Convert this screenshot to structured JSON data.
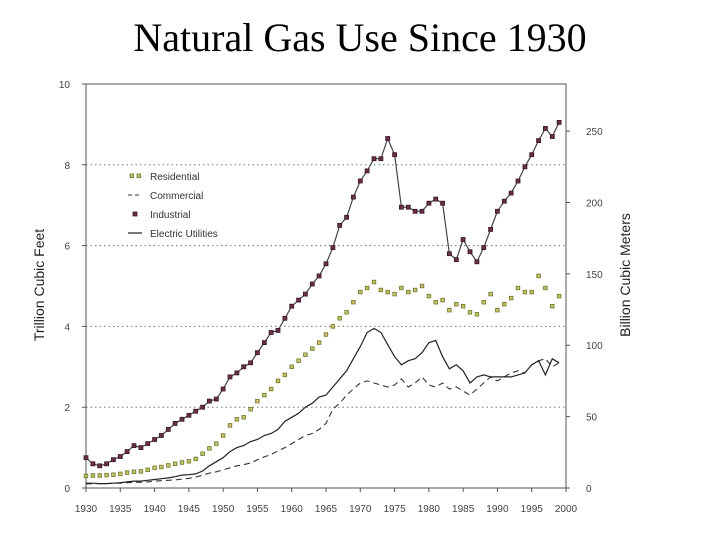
{
  "slide": {
    "title": "Natural Gas Use Since 1930"
  },
  "chart_data": {
    "type": "line",
    "title": "Natural Gas Use Since 1930",
    "xlabel": "",
    "ylabel": "Trillion Cubic Feet",
    "y2label": "Billion Cubic Meters",
    "xlim": [
      1930,
      2000
    ],
    "ylim": [
      0,
      10
    ],
    "y2lim": [
      0,
      283
    ],
    "x_ticks": [
      "1930",
      "1935",
      "1940",
      "1945",
      "1950",
      "1955",
      "1960",
      "1965",
      "1970",
      "1975",
      "1980",
      "1985",
      "1990",
      "1995",
      "2000"
    ],
    "y_ticks": [
      "0",
      "2",
      "4",
      "6",
      "8",
      "10"
    ],
    "y2_ticks": [
      "0",
      "50",
      "100",
      "150",
      "200",
      "250"
    ],
    "grid": "horizontal dotted at 2, 4, 6, 8",
    "legend_position": "top-left",
    "x": [
      1930,
      1931,
      1932,
      1933,
      1934,
      1935,
      1936,
      1937,
      1938,
      1939,
      1940,
      1941,
      1942,
      1943,
      1944,
      1945,
      1946,
      1947,
      1948,
      1949,
      1950,
      1951,
      1952,
      1953,
      1954,
      1955,
      1956,
      1957,
      1958,
      1959,
      1960,
      1961,
      1962,
      1963,
      1964,
      1965,
      1966,
      1967,
      1968,
      1969,
      1970,
      1971,
      1972,
      1973,
      1974,
      1975,
      1976,
      1977,
      1978,
      1979,
      1980,
      1981,
      1982,
      1983,
      1984,
      1985,
      1986,
      1987,
      1988,
      1989,
      1990,
      1991,
      1992,
      1993,
      1994,
      1995,
      1996,
      1997,
      1998,
      1999
    ],
    "series": [
      {
        "name": "Residential",
        "style": "dotted-squares",
        "color": "#6b7a2a",
        "values": [
          0.3,
          0.31,
          0.31,
          0.32,
          0.33,
          0.35,
          0.38,
          0.4,
          0.41,
          0.45,
          0.5,
          0.52,
          0.56,
          0.6,
          0.63,
          0.66,
          0.72,
          0.85,
          0.98,
          1.1,
          1.3,
          1.55,
          1.7,
          1.75,
          1.95,
          2.15,
          2.3,
          2.45,
          2.65,
          2.8,
          3.0,
          3.15,
          3.3,
          3.45,
          3.6,
          3.8,
          4.0,
          4.2,
          4.35,
          4.6,
          4.85,
          4.95,
          5.1,
          4.9,
          4.85,
          4.8,
          4.95,
          4.85,
          4.9,
          5.0,
          4.75,
          4.6,
          4.65,
          4.4,
          4.55,
          4.5,
          4.35,
          4.3,
          4.6,
          4.8,
          4.4,
          4.55,
          4.7,
          4.95,
          4.85,
          4.85,
          5.25,
          4.95,
          4.5,
          4.75
        ]
      },
      {
        "name": "Commercial",
        "style": "dashed",
        "color": "#333333",
        "values": [
          0.1,
          0.11,
          0.11,
          0.11,
          0.12,
          0.12,
          0.13,
          0.14,
          0.14,
          0.15,
          0.17,
          0.18,
          0.19,
          0.2,
          0.22,
          0.24,
          0.27,
          0.32,
          0.37,
          0.4,
          0.45,
          0.5,
          0.55,
          0.58,
          0.62,
          0.7,
          0.77,
          0.83,
          0.92,
          1.0,
          1.1,
          1.2,
          1.3,
          1.35,
          1.45,
          1.6,
          1.95,
          2.1,
          2.3,
          2.45,
          2.6,
          2.65,
          2.6,
          2.55,
          2.5,
          2.55,
          2.7,
          2.5,
          2.6,
          2.75,
          2.55,
          2.5,
          2.6,
          2.45,
          2.5,
          2.4,
          2.3,
          2.45,
          2.6,
          2.75,
          2.65,
          2.75,
          2.85,
          2.9,
          2.85,
          3.05,
          3.15,
          3.2,
          3.0,
          3.1
        ]
      },
      {
        "name": "Industrial",
        "style": "line-squares",
        "color": "#6b2e4a",
        "values": [
          0.75,
          0.6,
          0.55,
          0.6,
          0.7,
          0.78,
          0.9,
          1.05,
          1.0,
          1.1,
          1.2,
          1.3,
          1.45,
          1.6,
          1.7,
          1.8,
          1.9,
          2.0,
          2.15,
          2.2,
          2.45,
          2.75,
          2.85,
          3.0,
          3.1,
          3.35,
          3.6,
          3.85,
          3.9,
          4.2,
          4.5,
          4.65,
          4.8,
          5.05,
          5.25,
          5.55,
          5.95,
          6.5,
          6.7,
          7.2,
          7.6,
          7.85,
          8.15,
          8.15,
          8.65,
          8.25,
          6.95,
          6.95,
          6.85,
          6.85,
          7.05,
          7.15,
          7.05,
          5.8,
          5.65,
          6.15,
          5.85,
          5.6,
          5.95,
          6.4,
          6.85,
          7.1,
          7.3,
          7.6,
          7.95,
          8.25,
          8.6,
          8.9,
          8.7,
          9.05
        ]
      },
      {
        "name": "Electric Utilities",
        "style": "solid",
        "color": "#222222",
        "values": [
          0.12,
          0.12,
          0.11,
          0.11,
          0.12,
          0.13,
          0.15,
          0.17,
          0.17,
          0.19,
          0.21,
          0.23,
          0.25,
          0.28,
          0.32,
          0.33,
          0.35,
          0.42,
          0.55,
          0.65,
          0.75,
          0.9,
          1.0,
          1.05,
          1.15,
          1.2,
          1.3,
          1.35,
          1.45,
          1.65,
          1.75,
          1.85,
          2.0,
          2.1,
          2.25,
          2.3,
          2.5,
          2.7,
          2.9,
          3.2,
          3.5,
          3.85,
          3.95,
          3.85,
          3.55,
          3.25,
          3.05,
          3.15,
          3.2,
          3.35,
          3.6,
          3.65,
          3.25,
          2.95,
          3.05,
          2.9,
          2.6,
          2.75,
          2.8,
          2.75,
          2.75,
          2.75,
          2.75,
          2.8,
          2.85,
          3.05,
          3.15,
          2.8,
          3.2,
          3.1
        ]
      }
    ]
  }
}
